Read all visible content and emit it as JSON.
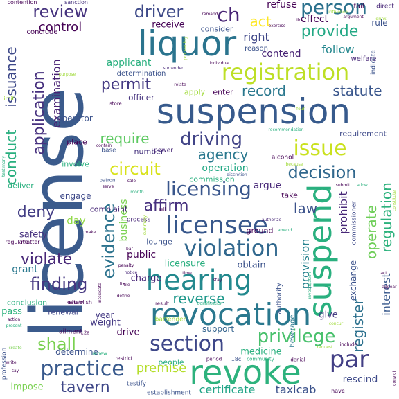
{
  "words": [
    {
      "text": "license",
      "color": "#3b5b8c"
    },
    {
      "text": "suspension",
      "color": "#375a8c"
    },
    {
      "text": "liquor",
      "color": "#2b748e"
    },
    {
      "text": "revocation",
      "color": "#2a788e"
    },
    {
      "text": "hearing",
      "color": "#23898e"
    },
    {
      "text": "revoke",
      "color": "#2db27d"
    },
    {
      "text": "suspend",
      "color": "#2ab07f"
    },
    {
      "text": "registration",
      "color": "#bddf26"
    },
    {
      "text": "licensee",
      "color": "#38588c"
    },
    {
      "text": "violation",
      "color": "#31688e"
    },
    {
      "text": "practice",
      "color": "#38598c"
    },
    {
      "text": "section",
      "color": "#3f4889"
    },
    {
      "text": "licensing",
      "color": "#39568c"
    },
    {
      "text": "privilege",
      "color": "#4ac16d"
    },
    {
      "text": "issue",
      "color": "#cae11f"
    },
    {
      "text": "driving",
      "color": "#414487"
    },
    {
      "text": "person",
      "color": "#2c728e"
    },
    {
      "text": "provide",
      "color": "#22a884"
    },
    {
      "text": "ch",
      "color": "#482475"
    },
    {
      "text": "review",
      "color": "#46337e"
    },
    {
      "text": "driver",
      "color": "#3e4a89"
    },
    {
      "text": "par",
      "color": "#423f85"
    },
    {
      "text": "decision",
      "color": "#31688e"
    },
    {
      "text": "evidence",
      "color": "#2c738e"
    },
    {
      "text": "finding",
      "color": "#453781"
    },
    {
      "text": "shall",
      "color": "#7ad151"
    },
    {
      "text": "tavern",
      "color": "#3f4788"
    },
    {
      "text": "reverse",
      "color": "#1f988b"
    },
    {
      "text": "statute",
      "color": "#39568c"
    },
    {
      "text": "record",
      "color": "#2a788e"
    },
    {
      "text": "permit",
      "color": "#443a83"
    },
    {
      "text": "circuit",
      "color": "#d8e219"
    },
    {
      "text": "require",
      "color": "#5ec962"
    },
    {
      "text": "agency",
      "color": "#2a788e"
    },
    {
      "text": "affirm",
      "color": "#46307e"
    },
    {
      "text": "violate",
      "color": "#482878"
    },
    {
      "text": "deny",
      "color": "#433e85"
    },
    {
      "text": "law",
      "color": "#3b528b"
    },
    {
      "text": "act",
      "color": "#fde725"
    },
    {
      "text": "control",
      "color": "#440154"
    },
    {
      "text": "application",
      "color": "#46307e"
    },
    {
      "text": "conduct",
      "color": "#29af7f"
    },
    {
      "text": "issuance",
      "color": "#3e4989"
    },
    {
      "text": "examination",
      "color": "#482173"
    },
    {
      "text": "regulation",
      "color": "#2db27d"
    },
    {
      "text": "register",
      "color": "#2d718e"
    },
    {
      "text": "operate",
      "color": "#6ece58"
    },
    {
      "text": "prohibit",
      "color": "#482878"
    },
    {
      "text": "provision",
      "color": "#26828e"
    },
    {
      "text": "interest",
      "color": "#38598c"
    },
    {
      "text": "premise",
      "color": "#b5de2b"
    },
    {
      "text": "certificate",
      "color": "#20a486"
    },
    {
      "text": "taxicab",
      "color": "#3b528b"
    },
    {
      "text": "rescind",
      "color": "#3e4a89"
    },
    {
      "text": "follow",
      "color": "#24878e"
    },
    {
      "text": "right",
      "color": "#3f4788"
    },
    {
      "text": "contend",
      "color": "#482475"
    },
    {
      "text": "effect",
      "color": "#440154"
    },
    {
      "text": "refuse",
      "color": "#440154"
    },
    {
      "text": "applicant",
      "color": "#2ab07f"
    },
    {
      "text": "receive",
      "color": "#440154"
    },
    {
      "text": "consider",
      "color": "#3b528b"
    },
    {
      "text": "operation",
      "color": "#22a884"
    },
    {
      "text": "commission",
      "color": "#2ab07f"
    },
    {
      "text": "business",
      "color": "#7ad151"
    },
    {
      "text": "engage",
      "color": "#3e4989"
    },
    {
      "text": "argue",
      "color": "#482878"
    },
    {
      "text": "safety",
      "color": "#46307e"
    },
    {
      "text": "day",
      "color": "#8fd744"
    },
    {
      "text": "grant",
      "color": "#2a788e"
    },
    {
      "text": "public",
      "color": "#440154"
    },
    {
      "text": "charge",
      "color": "#482878"
    },
    {
      "text": "obtain",
      "color": "#3b528b"
    },
    {
      "text": "licensure",
      "color": "#29af7f"
    },
    {
      "text": "weight",
      "color": "#443983"
    },
    {
      "text": "determine",
      "color": "#3b528b"
    },
    {
      "text": "drive",
      "color": "#440154"
    },
    {
      "text": "support",
      "color": "#33638d"
    },
    {
      "text": "medicine",
      "color": "#2ab07f"
    },
    {
      "text": "people",
      "color": "#27ad81"
    },
    {
      "text": "impose",
      "color": "#7ad151"
    },
    {
      "text": "pass",
      "color": "#2db27d"
    },
    {
      "text": "conclusion",
      "color": "#2ab07f"
    },
    {
      "text": "year",
      "color": "#443983"
    },
    {
      "text": "renewal",
      "color": "#3f4788"
    },
    {
      "text": "give",
      "color": "#443a83"
    },
    {
      "text": "exchange",
      "color": "#3b528b"
    },
    {
      "text": "requirement",
      "color": "#3e4a89"
    },
    {
      "text": "place",
      "color": "#440154"
    },
    {
      "text": "number",
      "color": "#46337e"
    },
    {
      "text": "involve",
      "color": "#2ab07f"
    },
    {
      "text": "deliver",
      "color": "#2ab07f"
    },
    {
      "text": "complaint",
      "color": "#482878"
    },
    {
      "text": "lounge",
      "color": "#3b528b"
    },
    {
      "text": "officer",
      "color": "#46337e"
    },
    {
      "text": "operator",
      "color": "#3b528b"
    },
    {
      "text": "apply",
      "color": "#a0da39"
    },
    {
      "text": "enter",
      "color": "#440154"
    },
    {
      "text": "reason",
      "color": "#3b528b"
    },
    {
      "text": "welfare",
      "color": "#482878"
    },
    {
      "text": "beverage",
      "color": "#2a788e"
    },
    {
      "text": "authority",
      "color": "#3b528b"
    },
    {
      "text": "commissioner",
      "color": "#3e4a89"
    },
    {
      "text": "rule",
      "color": "#3b528b"
    },
    {
      "text": "alcohol",
      "color": "#440154"
    },
    {
      "text": "ground",
      "color": "#440154"
    },
    {
      "text": "take",
      "color": "#440154"
    },
    {
      "text": "conclude",
      "color": "#440154"
    },
    {
      "text": "determination",
      "color": "#3b528b"
    },
    {
      "text": "fail",
      "color": "#440154"
    },
    {
      "text": "direct",
      "color": "#482878"
    },
    {
      "text": "sanction",
      "color": "#46337e"
    },
    {
      "text": "contention",
      "color": "#440154"
    },
    {
      "text": "indicate",
      "color": "#3b528b"
    },
    {
      "text": "establishment",
      "color": "#3b528b"
    },
    {
      "text": "testify",
      "color": "#3b528b"
    },
    {
      "text": "ailment",
      "color": "#440154"
    },
    {
      "text": "bartender",
      "color": "#a0da39"
    },
    {
      "text": "power",
      "color": "#482878"
    },
    {
      "text": "base",
      "color": "#3b528b"
    },
    {
      "text": "process",
      "color": "#482878"
    },
    {
      "text": "testimony",
      "color": "#2ab07f"
    },
    {
      "text": "limit",
      "color": "#a0da39"
    },
    {
      "text": "establish",
      "color": "#440154"
    },
    {
      "text": "matter",
      "color": "#440154"
    },
    {
      "text": "regulate",
      "color": "#440154"
    },
    {
      "text": "profession",
      "color": "#3b528b"
    },
    {
      "text": "create",
      "color": "#7ad151"
    },
    {
      "text": "show",
      "color": "#440154"
    },
    {
      "text": "result",
      "color": "#440154"
    },
    {
      "text": "include",
      "color": "#440154"
    },
    {
      "text": "denial",
      "color": "#440154"
    },
    {
      "text": "period",
      "color": "#440154"
    },
    {
      "text": "community",
      "color": "#2ab07f"
    },
    {
      "text": "18c",
      "color": "#3b528b"
    },
    {
      "text": "12a",
      "color": "#440154"
    },
    {
      "text": "restrict",
      "color": "#440154"
    },
    {
      "text": "renew",
      "color": "#2ab07f"
    },
    {
      "text": "store",
      "color": "#440154"
    },
    {
      "text": "relate",
      "color": "#440154"
    },
    {
      "text": "sale",
      "color": "#440154"
    },
    {
      "text": "serve",
      "color": "#440154"
    },
    {
      "text": "patron",
      "color": "#3b528b"
    },
    {
      "text": "month",
      "color": "#2ab07f"
    },
    {
      "text": "discretion",
      "color": "#3b528b"
    },
    {
      "text": "submit",
      "color": "#440154"
    },
    {
      "text": "allow",
      "color": "#2ab07f"
    },
    {
      "text": "authorize",
      "color": "#482878"
    },
    {
      "text": "amend",
      "color": "#2ab07f"
    },
    {
      "text": "summary",
      "color": "#a0da39"
    },
    {
      "text": "sell",
      "color": "#440154"
    },
    {
      "text": "penalty",
      "color": "#440154"
    },
    {
      "text": "notice",
      "color": "#482878"
    },
    {
      "text": "qualification",
      "color": "#2ab07f"
    },
    {
      "text": "fix",
      "color": "#440154"
    },
    {
      "text": "stay",
      "color": "#440154"
    },
    {
      "text": "define",
      "color": "#440154"
    },
    {
      "text": "intoxicate",
      "color": "#440154"
    },
    {
      "text": "individual",
      "color": "#440154"
    },
    {
      "text": "recommendation",
      "color": "#2ab07f"
    },
    {
      "text": "surrender",
      "color": "#482878"
    },
    {
      "text": "purpose",
      "color": "#a0da39"
    },
    {
      "text": "influence",
      "color": "#a0da39"
    },
    {
      "text": "argument",
      "color": "#440154"
    },
    {
      "text": "drink",
      "color": "#a0da39"
    },
    {
      "text": "proceeding",
      "color": "#a0da39"
    },
    {
      "text": "because",
      "color": "#a0da39"
    },
    {
      "text": "constitute",
      "color": "#a0da39"
    },
    {
      "text": "convict",
      "color": "#440154"
    },
    {
      "text": "exercise",
      "color": "#440154"
    },
    {
      "text": "remand",
      "color": "#440154"
    },
    {
      "text": "appear",
      "color": "#440154"
    },
    {
      "text": "have",
      "color": "#440154"
    },
    {
      "text": "make",
      "color": "#440154"
    },
    {
      "text": "say",
      "color": "#440154"
    },
    {
      "text": "act",
      "color": "#440154"
    },
    {
      "text": "bar",
      "color": "#440154"
    },
    {
      "text": "four",
      "color": "#a0da39"
    },
    {
      "text": "concur",
      "color": "#a0da39"
    },
    {
      "text": "request",
      "color": "#a0da39"
    },
    {
      "text": "present",
      "color": "#2ab07f"
    },
    {
      "text": "action",
      "color": "#440154"
    },
    {
      "text": "investigation",
      "color": "#2ab07f"
    },
    {
      "text": "write",
      "color": "#440154"
    },
    {
      "text": "ilcs",
      "color": "#440154"
    },
    {
      "text": "contain",
      "color": "#440154"
    },
    {
      "text": "file",
      "color": "#440154"
    },
    {
      "text": "time",
      "color": "#440154"
    }
  ]
}
